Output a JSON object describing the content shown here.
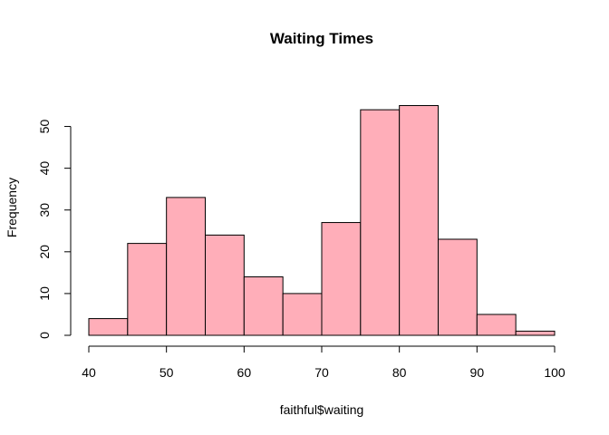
{
  "chart_data": {
    "type": "bar",
    "title": "Waiting Times",
    "xlabel": "faithful$waiting",
    "ylabel": "Frequency",
    "bins": [
      {
        "from": 40,
        "to": 45,
        "count": 4
      },
      {
        "from": 45,
        "to": 50,
        "count": 22
      },
      {
        "from": 50,
        "to": 55,
        "count": 33
      },
      {
        "from": 55,
        "to": 60,
        "count": 24
      },
      {
        "from": 60,
        "to": 65,
        "count": 14
      },
      {
        "from": 65,
        "to": 70,
        "count": 10
      },
      {
        "from": 70,
        "to": 75,
        "count": 27
      },
      {
        "from": 75,
        "to": 80,
        "count": 54
      },
      {
        "from": 80,
        "to": 85,
        "count": 55
      },
      {
        "from": 85,
        "to": 90,
        "count": 23
      },
      {
        "from": 90,
        "to": 95,
        "count": 5
      },
      {
        "from": 95,
        "to": 100,
        "count": 1
      }
    ],
    "xlim": [
      40,
      100
    ],
    "ylim": [
      0,
      55
    ],
    "x_ticks": [
      "40",
      "50",
      "60",
      "70",
      "80",
      "90",
      "100"
    ],
    "y_ticks": [
      "0",
      "10",
      "20",
      "30",
      "40",
      "50"
    ],
    "bar_color": "#FFAEB9",
    "border_color": "#000000",
    "grid": false,
    "legend": "none"
  }
}
